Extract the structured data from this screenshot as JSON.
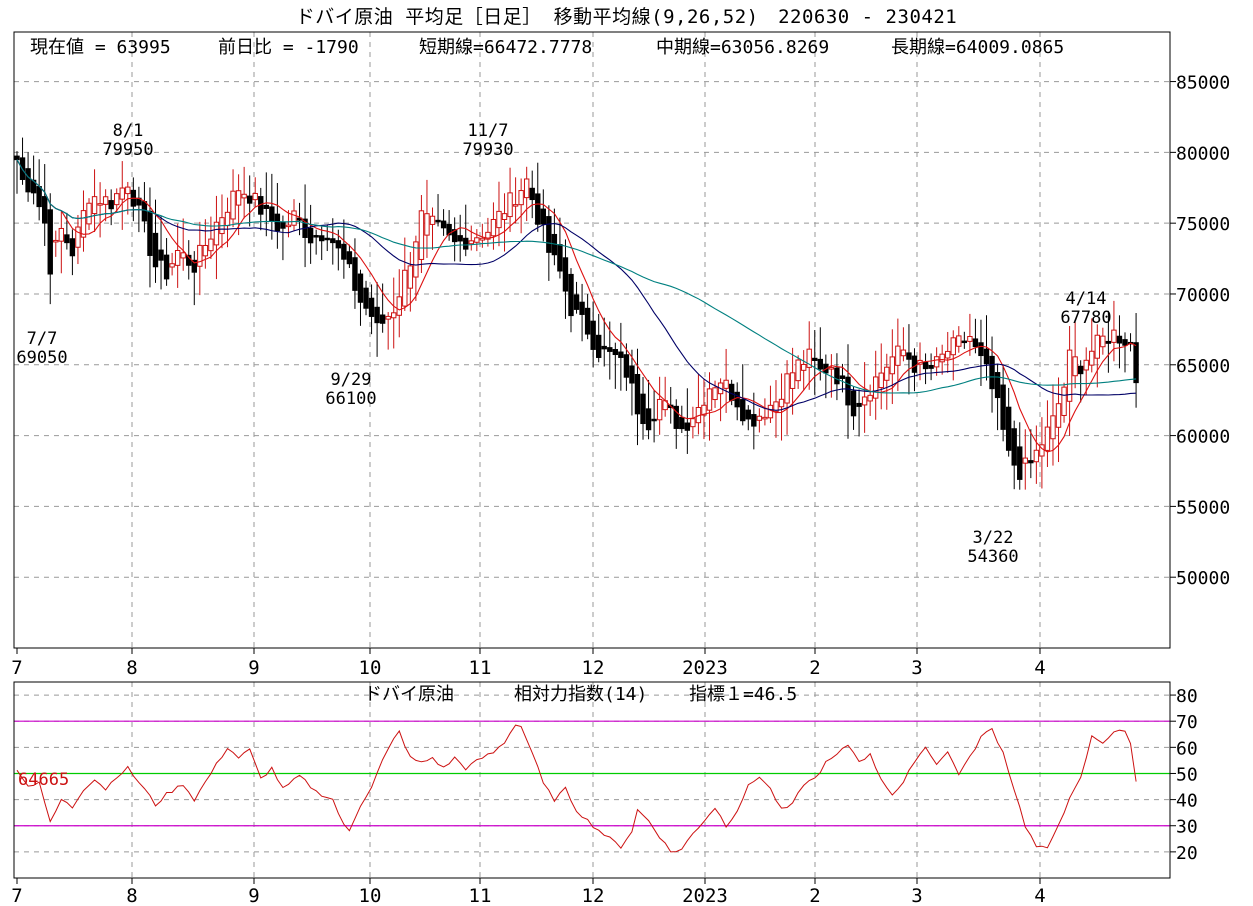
{
  "title": "ドバイ原油 平均足［日足］ 移動平均線(9,26,52)　220630 - 230421",
  "summary": {
    "current": "現在値 = 63995",
    "change": "前日比 = -1790",
    "short_ma": "短期線=66472.7778",
    "mid_ma": "中期線=63056.8269",
    "long_ma": "長期線=64009.0865"
  },
  "colors": {
    "up_candle": "#cc1111",
    "down_candle": "#000000",
    "short_ma": "#dd1111",
    "mid_ma": "#000066",
    "long_ma": "#008080",
    "rsi_line": "#cc1111",
    "rsi_band_70_30": "#cc00cc",
    "rsi_mid_50": "#00cc00",
    "grid": "#999999"
  },
  "chart_data": [
    {
      "type": "candlestick",
      "subtype": "heikin-ashi with moving averages",
      "title": "ドバイ原油 平均足［日足］ 移動平均線(9,26,52)",
      "date_range": "220630 - 230421",
      "x_ticks": [
        "7",
        "8",
        "9",
        "10",
        "11",
        "12",
        "2023",
        "2",
        "3",
        "4"
      ],
      "y_ticks": [
        50000,
        55000,
        60000,
        65000,
        70000,
        75000,
        80000,
        85000
      ],
      "ylim": [
        45000,
        88500
      ],
      "grid": true,
      "annotations": [
        {
          "date": "7/7",
          "value": "69050",
          "kind": "low"
        },
        {
          "date": "8/1",
          "value": "79950",
          "kind": "high"
        },
        {
          "date": "9/29",
          "value": "66100",
          "kind": "low"
        },
        {
          "date": "11/7",
          "value": "79930",
          "kind": "high"
        },
        {
          "date": "3/22",
          "value": "54360",
          "kind": "low"
        },
        {
          "date": "4/14",
          "value": "67780",
          "kind": "high"
        }
      ],
      "price_anchors": [
        {
          "x": 0,
          "v": 79500
        },
        {
          "x": 1,
          "v": 78000
        },
        {
          "x": 3,
          "v": 77500
        },
        {
          "x": 5,
          "v": 75000
        },
        {
          "x": 6,
          "v": 72000
        },
        {
          "x": 8,
          "v": 74500
        },
        {
          "x": 10,
          "v": 73000
        },
        {
          "x": 13,
          "v": 77000
        },
        {
          "x": 17,
          "v": 76500
        },
        {
          "x": 20,
          "v": 78000
        },
        {
          "x": 23,
          "v": 74500
        },
        {
          "x": 25,
          "v": 72000
        },
        {
          "x": 27,
          "v": 71500
        },
        {
          "x": 29,
          "v": 73000
        },
        {
          "x": 32,
          "v": 72000
        },
        {
          "x": 36,
          "v": 75000
        },
        {
          "x": 40,
          "v": 77500
        },
        {
          "x": 42,
          "v": 77000
        },
        {
          "x": 45,
          "v": 75500
        },
        {
          "x": 48,
          "v": 74500
        },
        {
          "x": 50,
          "v": 75500
        },
        {
          "x": 53,
          "v": 74000
        },
        {
          "x": 56,
          "v": 74500
        },
        {
          "x": 58,
          "v": 73000
        },
        {
          "x": 60,
          "v": 71500
        },
        {
          "x": 62,
          "v": 69500
        },
        {
          "x": 64,
          "v": 68500
        },
        {
          "x": 65,
          "v": 67500
        },
        {
          "x": 68,
          "v": 69000
        },
        {
          "x": 71,
          "v": 72500
        },
        {
          "x": 73,
          "v": 75500
        },
        {
          "x": 76,
          "v": 74500
        },
        {
          "x": 79,
          "v": 73500
        },
        {
          "x": 82,
          "v": 74000
        },
        {
          "x": 85,
          "v": 74500
        },
        {
          "x": 87,
          "v": 75500
        },
        {
          "x": 89,
          "v": 76500
        },
        {
          "x": 91,
          "v": 77500
        },
        {
          "x": 92,
          "v": 78000
        },
        {
          "x": 94,
          "v": 75500
        },
        {
          "x": 96,
          "v": 73000
        },
        {
          "x": 98,
          "v": 71500
        },
        {
          "x": 100,
          "v": 69000
        },
        {
          "x": 103,
          "v": 67500
        },
        {
          "x": 105,
          "v": 66000
        },
        {
          "x": 108,
          "v": 65500
        },
        {
          "x": 110,
          "v": 64500
        },
        {
          "x": 112,
          "v": 62000
        },
        {
          "x": 114,
          "v": 61000
        },
        {
          "x": 116,
          "v": 62500
        },
        {
          "x": 118,
          "v": 61500
        },
        {
          "x": 120,
          "v": 60500
        },
        {
          "x": 123,
          "v": 62000
        },
        {
          "x": 125,
          "v": 63500
        },
        {
          "x": 127,
          "v": 64000
        },
        {
          "x": 130,
          "v": 62500
        },
        {
          "x": 132,
          "v": 61000
        },
        {
          "x": 134,
          "v": 61500
        },
        {
          "x": 137,
          "v": 62500
        },
        {
          "x": 139,
          "v": 64000
        },
        {
          "x": 141,
          "v": 65000
        },
        {
          "x": 143,
          "v": 65500
        },
        {
          "x": 145,
          "v": 64500
        },
        {
          "x": 147,
          "v": 65000
        },
        {
          "x": 149,
          "v": 63500
        },
        {
          "x": 151,
          "v": 62000
        },
        {
          "x": 153,
          "v": 63000
        },
        {
          "x": 156,
          "v": 64500
        },
        {
          "x": 158,
          "v": 65500
        },
        {
          "x": 160,
          "v": 66000
        },
        {
          "x": 162,
          "v": 65000
        },
        {
          "x": 164,
          "v": 64500
        },
        {
          "x": 166,
          "v": 65000
        },
        {
          "x": 168,
          "v": 66000
        },
        {
          "x": 170,
          "v": 66500
        },
        {
          "x": 172,
          "v": 67000
        },
        {
          "x": 173,
          "v": 66000
        },
        {
          "x": 175,
          "v": 64500
        },
        {
          "x": 177,
          "v": 62000
        },
        {
          "x": 179,
          "v": 58500
        },
        {
          "x": 181,
          "v": 57500
        },
        {
          "x": 183,
          "v": 58000
        },
        {
          "x": 185,
          "v": 59500
        },
        {
          "x": 187,
          "v": 61000
        },
        {
          "x": 189,
          "v": 63500
        },
        {
          "x": 190,
          "v": 65500
        },
        {
          "x": 192,
          "v": 65000
        },
        {
          "x": 194,
          "v": 66000
        },
        {
          "x": 196,
          "v": 66800
        },
        {
          "x": 198,
          "v": 67200
        },
        {
          "x": 200,
          "v": 66800
        },
        {
          "x": 201,
          "v": 66500
        },
        {
          "x": 202,
          "v": 64000
        }
      ],
      "series": [
        {
          "name": "短期線",
          "period": 9,
          "last": 66472.7778
        },
        {
          "name": "中期線",
          "period": 26,
          "last": 63056.8269
        },
        {
          "name": "長期線",
          "period": 52,
          "last": 64009.0865
        }
      ]
    },
    {
      "type": "line",
      "title": "ドバイ原油 相対力指数(14)",
      "panel_title_parts": [
        "ドバイ原油",
        "相対力指数(14)",
        "指標１=46.5"
      ],
      "x_ticks": [
        "7",
        "8",
        "9",
        "10",
        "11",
        "12",
        "2023",
        "2",
        "3",
        "4"
      ],
      "y_ticks": [
        20,
        30,
        40,
        50,
        60,
        70,
        80
      ],
      "ylim": [
        10,
        85
      ],
      "reference_lines": [
        30,
        50,
        70
      ],
      "side_label": "64665",
      "rsi_anchors": [
        {
          "x": 0,
          "v": 52
        },
        {
          "x": 2,
          "v": 45
        },
        {
          "x": 4,
          "v": 47
        },
        {
          "x": 6,
          "v": 31
        },
        {
          "x": 8,
          "v": 40
        },
        {
          "x": 10,
          "v": 37
        },
        {
          "x": 12,
          "v": 44
        },
        {
          "x": 14,
          "v": 48
        },
        {
          "x": 16,
          "v": 44
        },
        {
          "x": 18,
          "v": 49
        },
        {
          "x": 20,
          "v": 52
        },
        {
          "x": 23,
          "v": 44
        },
        {
          "x": 25,
          "v": 38
        },
        {
          "x": 27,
          "v": 42
        },
        {
          "x": 30,
          "v": 46
        },
        {
          "x": 32,
          "v": 40
        },
        {
          "x": 35,
          "v": 50
        },
        {
          "x": 38,
          "v": 60
        },
        {
          "x": 40,
          "v": 56
        },
        {
          "x": 42,
          "v": 59
        },
        {
          "x": 44,
          "v": 48
        },
        {
          "x": 46,
          "v": 52
        },
        {
          "x": 48,
          "v": 44
        },
        {
          "x": 51,
          "v": 49
        },
        {
          "x": 54,
          "v": 43
        },
        {
          "x": 57,
          "v": 40
        },
        {
          "x": 59,
          "v": 30
        },
        {
          "x": 60,
          "v": 28
        },
        {
          "x": 62,
          "v": 38
        },
        {
          "x": 64,
          "v": 45
        },
        {
          "x": 66,
          "v": 55
        },
        {
          "x": 68,
          "v": 63
        },
        {
          "x": 69,
          "v": 66
        },
        {
          "x": 71,
          "v": 56
        },
        {
          "x": 73,
          "v": 54
        },
        {
          "x": 75,
          "v": 56
        },
        {
          "x": 77,
          "v": 52
        },
        {
          "x": 79,
          "v": 56
        },
        {
          "x": 81,
          "v": 52
        },
        {
          "x": 84,
          "v": 56
        },
        {
          "x": 86,
          "v": 58
        },
        {
          "x": 88,
          "v": 62
        },
        {
          "x": 90,
          "v": 69
        },
        {
          "x": 91,
          "v": 68
        },
        {
          "x": 93,
          "v": 58
        },
        {
          "x": 95,
          "v": 46
        },
        {
          "x": 97,
          "v": 40
        },
        {
          "x": 99,
          "v": 44
        },
        {
          "x": 101,
          "v": 36
        },
        {
          "x": 104,
          "v": 30
        },
        {
          "x": 107,
          "v": 25
        },
        {
          "x": 109,
          "v": 22
        },
        {
          "x": 111,
          "v": 28
        },
        {
          "x": 112,
          "v": 36
        },
        {
          "x": 114,
          "v": 32
        },
        {
          "x": 116,
          "v": 26
        },
        {
          "x": 118,
          "v": 20
        },
        {
          "x": 120,
          "v": 21
        },
        {
          "x": 122,
          "v": 27
        },
        {
          "x": 124,
          "v": 32
        },
        {
          "x": 126,
          "v": 37
        },
        {
          "x": 128,
          "v": 30
        },
        {
          "x": 130,
          "v": 36
        },
        {
          "x": 132,
          "v": 45
        },
        {
          "x": 134,
          "v": 49
        },
        {
          "x": 136,
          "v": 44
        },
        {
          "x": 138,
          "v": 36
        },
        {
          "x": 140,
          "v": 38
        },
        {
          "x": 142,
          "v": 46
        },
        {
          "x": 144,
          "v": 48
        },
        {
          "x": 146,
          "v": 54
        },
        {
          "x": 148,
          "v": 57
        },
        {
          "x": 150,
          "v": 61
        },
        {
          "x": 152,
          "v": 55
        },
        {
          "x": 154,
          "v": 57
        },
        {
          "x": 156,
          "v": 48
        },
        {
          "x": 158,
          "v": 42
        },
        {
          "x": 160,
          "v": 46
        },
        {
          "x": 162,
          "v": 55
        },
        {
          "x": 164,
          "v": 60
        },
        {
          "x": 166,
          "v": 54
        },
        {
          "x": 168,
          "v": 58
        },
        {
          "x": 170,
          "v": 50
        },
        {
          "x": 172,
          "v": 56
        },
        {
          "x": 174,
          "v": 64
        },
        {
          "x": 176,
          "v": 67
        },
        {
          "x": 178,
          "v": 58
        },
        {
          "x": 180,
          "v": 44
        },
        {
          "x": 182,
          "v": 30
        },
        {
          "x": 184,
          "v": 22
        },
        {
          "x": 186,
          "v": 21
        },
        {
          "x": 188,
          "v": 31
        },
        {
          "x": 190,
          "v": 40
        },
        {
          "x": 192,
          "v": 48
        },
        {
          "x": 194,
          "v": 64
        },
        {
          "x": 196,
          "v": 62
        },
        {
          "x": 198,
          "v": 66
        },
        {
          "x": 200,
          "v": 66
        },
        {
          "x": 201,
          "v": 62
        },
        {
          "x": 202,
          "v": 46.5
        }
      ]
    }
  ]
}
